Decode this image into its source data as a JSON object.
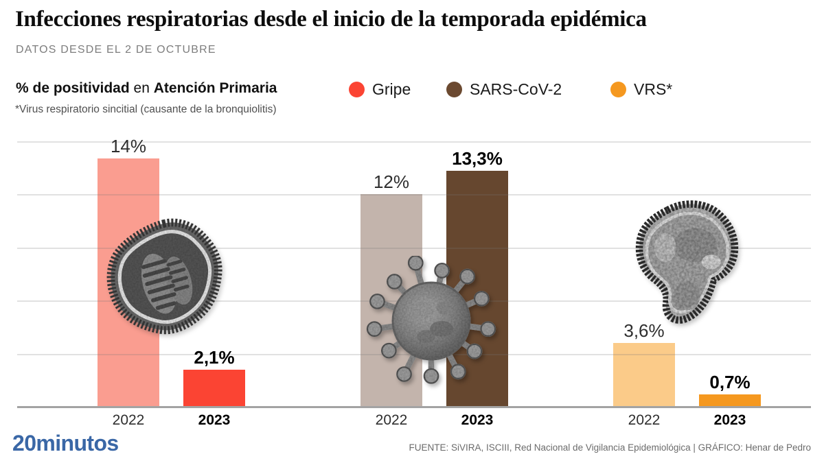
{
  "header": {
    "title": "Infecciones respiratorias desde el inicio de la temporada epidémica",
    "subtitle": "DATOS DESDE EL 2 DE OCTUBRE"
  },
  "chart_data": {
    "type": "bar",
    "title": "Infecciones respiratorias desde el inicio de la temporada epidémica",
    "subtitle": "DATOS DESDE EL 2 DE OCTUBRE",
    "measure": {
      "bold1": "% de positividad",
      "mid": " en ",
      "bold2": "Atención Primaria"
    },
    "footnote": "*Virus respiratorio sincitial (causante de la bronquiolitis)",
    "unit": "%",
    "ylim": [
      0,
      15
    ],
    "gridline_step": 3,
    "grid": true,
    "legend_position": "top",
    "categories": [
      "2022",
      "2023"
    ],
    "groups": [
      {
        "virus": "Gripe",
        "values": [
          14,
          2.1
        ],
        "value_labels": [
          "14%",
          "2,1%"
        ],
        "bar_colors": [
          "#FA9D90",
          "#FB4433"
        ]
      },
      {
        "virus": "SARS-CoV-2",
        "values": [
          12,
          13.3
        ],
        "value_labels": [
          "12%",
          "13,3%"
        ],
        "bar_colors": [
          "#C3B4AC",
          "#66472F"
        ]
      },
      {
        "virus": "VRS*",
        "values": [
          3.6,
          0.7
        ],
        "value_labels": [
          "3,6%",
          "0,7%"
        ],
        "bar_colors": [
          "#FBCB89",
          "#F5981F"
        ]
      }
    ],
    "legend": [
      {
        "label": "Gripe",
        "color": "#FB4433"
      },
      {
        "label": "SARS-CoV-2",
        "color": "#66472F"
      },
      {
        "label": "VRS*",
        "color": "#F5981F"
      }
    ],
    "images": {
      "gripe": "influenza-virion-micrograph",
      "sars": "coronavirus-virion-micrograph",
      "vrs": "rsv-virion-micrograph"
    }
  },
  "footer": {
    "logo": "20minutos",
    "logo_color": "#3A67A6",
    "source": "FUENTE: SiVIRA, ISCIII, Red Nacional de Vigilancia Epidemiológica  |  GRÁFICO: Henar de Pedro"
  }
}
